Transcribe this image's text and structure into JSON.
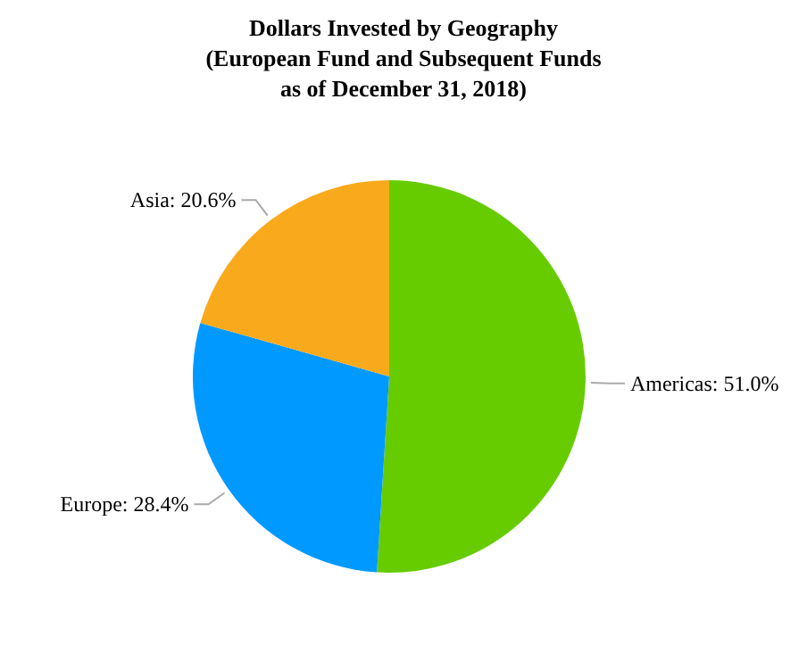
{
  "chart_data": {
    "type": "pie",
    "title": "Dollars Invested by Geography\n(European Fund and Subsequent Funds\nas of December 31, 2018)",
    "categories": [
      "Americas",
      "Europe",
      "Asia"
    ],
    "values": [
      51.0,
      28.4,
      20.6
    ],
    "value_labels": [
      "51.0%",
      "28.4%",
      "20.6%"
    ],
    "colors": [
      "#66cc00",
      "#0099ff",
      "#f9aa1c"
    ],
    "legend": false
  }
}
